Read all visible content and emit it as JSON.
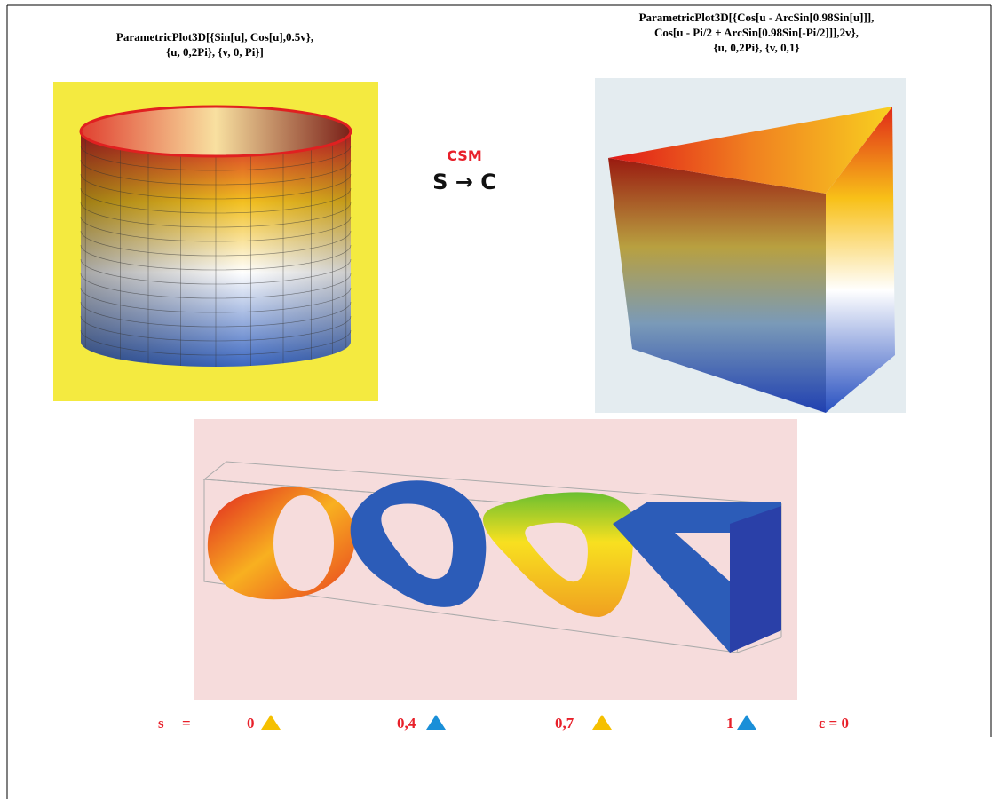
{
  "left_panel": {
    "caption": [
      "ParametricPlot3D[{Sin[u], Cos[u],0.5v},",
      "{u, 0,2Pi}, {v, 0, Pi}]"
    ]
  },
  "right_panel": {
    "caption": [
      "ParametricPlot3D[{Cos[u - ArcSin[0.98Sin[u]]],",
      "Cos[u - Pi/2 + ArcSin[0.98Sin[-Pi/2]]],2v},",
      "{u, 0,2Pi}, {v, 0,1}"
    ]
  },
  "center": {
    "label": "CSM",
    "arrow_text": "S → C"
  },
  "bottom_row": {
    "parameter": "s",
    "equals": "=",
    "values": [
      "0",
      "0,4",
      "0,7",
      "1"
    ],
    "epsilon": "ε = 0"
  }
}
